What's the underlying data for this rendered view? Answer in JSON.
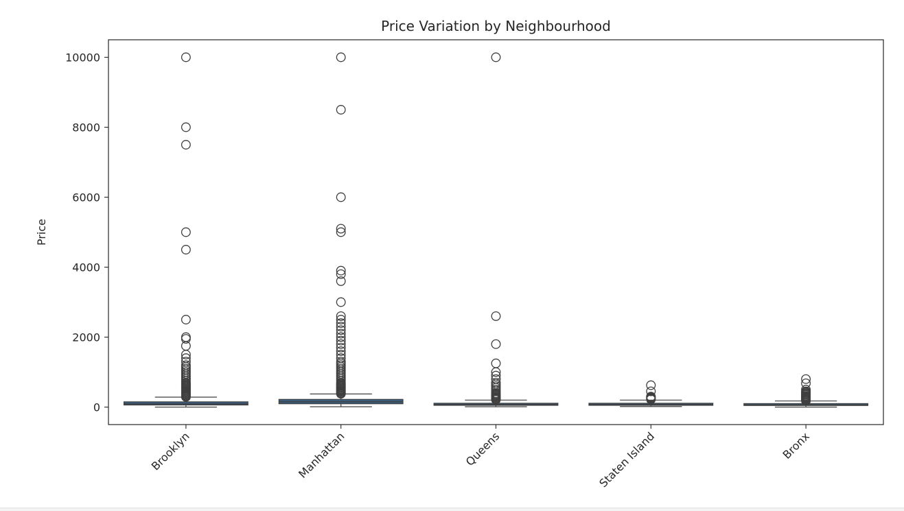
{
  "chart_data": {
    "type": "box",
    "title": "Price Variation by Neighbourhood",
    "xlabel": "",
    "ylabel": "Price",
    "ylim": [
      -500,
      10500
    ],
    "yticks": [
      0,
      2000,
      4000,
      6000,
      8000,
      10000
    ],
    "categories": [
      "Brooklyn",
      "Manhattan",
      "Queens",
      "Staten Island",
      "Bronx"
    ],
    "colors": {
      "box_fill": "#3a5f80",
      "box_edge": "#3f3f3f",
      "outlier_edge": "#3f3f3f"
    },
    "boxes": [
      {
        "category": "Brooklyn",
        "whisker_low": 0,
        "q1": 60,
        "median": 90,
        "q3": 150,
        "whisker_high": 285,
        "outliers": [
          290,
          310,
          330,
          350,
          375,
          400,
          425,
          450,
          475,
          500,
          525,
          550,
          575,
          600,
          625,
          650,
          680,
          700,
          750,
          800,
          850,
          900,
          950,
          1000,
          1050,
          1100,
          1150,
          1200,
          1300,
          1400,
          1500,
          1750,
          1950,
          2000,
          2500,
          4500,
          5000,
          7500,
          8000,
          10000
        ]
      },
      {
        "category": "Manhattan",
        "whisker_low": 10,
        "q1": 95,
        "median": 150,
        "q3": 220,
        "whisker_high": 375,
        "outliers": [
          380,
          400,
          425,
          450,
          475,
          500,
          525,
          550,
          575,
          600,
          625,
          650,
          675,
          700,
          750,
          800,
          850,
          900,
          950,
          1000,
          1050,
          1100,
          1150,
          1200,
          1250,
          1300,
          1400,
          1500,
          1600,
          1700,
          1800,
          1900,
          2000,
          2100,
          2200,
          2300,
          2400,
          2500,
          2600,
          3000,
          3600,
          3800,
          3900,
          5000,
          5100,
          6000,
          8500,
          10000
        ]
      },
      {
        "category": "Queens",
        "whisker_low": 10,
        "q1": 50,
        "median": 75,
        "q3": 110,
        "whisker_high": 200,
        "outliers": [
          210,
          230,
          250,
          275,
          300,
          325,
          350,
          375,
          400,
          450,
          500,
          550,
          600,
          650,
          700,
          800,
          900,
          1000,
          1250,
          1800,
          2600,
          10000
        ]
      },
      {
        "category": "Staten Island",
        "whisker_low": 15,
        "q1": 50,
        "median": 75,
        "q3": 110,
        "whisker_high": 200,
        "outliers": [
          220,
          240,
          260,
          280,
          300,
          450,
          625
        ]
      },
      {
        "category": "Bronx",
        "whisker_low": 0,
        "q1": 45,
        "median": 65,
        "q3": 100,
        "whisker_high": 175,
        "outliers": [
          180,
          200,
          220,
          240,
          260,
          280,
          300,
          320,
          350,
          375,
          400,
          425,
          450,
          500,
          680,
          800
        ]
      }
    ]
  }
}
